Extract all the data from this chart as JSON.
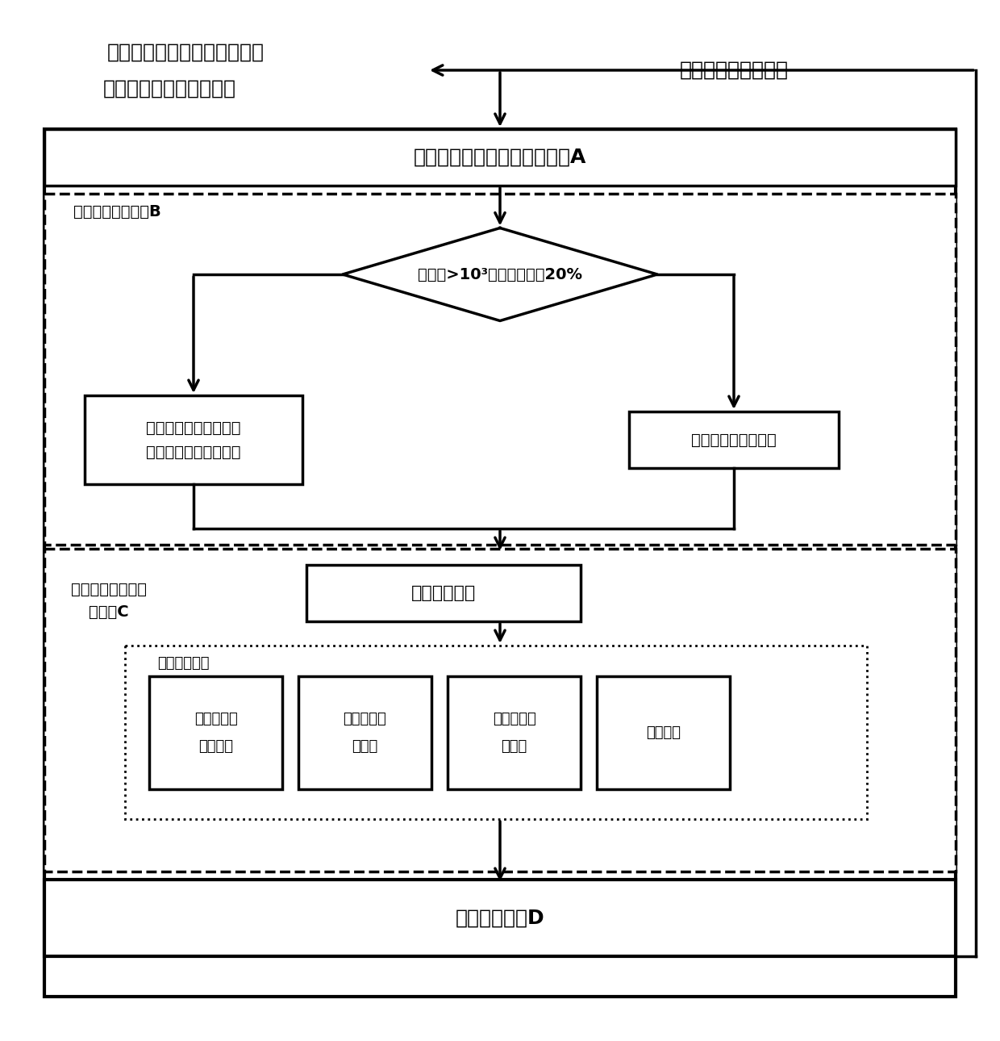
{
  "bg_color": "#ffffff",
  "text_color": "#000000",
  "text_topleft_line1": "环境车车道，车速，加速度，",
  "text_topleft_line2": "相对距离等车辆状态信息",
  "text_topright": "本车车道，速度信息",
  "box_A_text": "感知信号收集及数据存储模块A",
  "box_B_label": "决策参数学习模块B",
  "diamond_text": "数据量>10³或更新量大于20%",
  "box_left_line1": "基于核函数的最小二乘",
  "box_left_line2": "策略迭代强化学习算法",
  "box_right_text": "人类驾驶或随机策略",
  "box_C_label_line1": "轨迹规划及运动控",
  "box_C_label_line2": "制模块C",
  "box_decision_text": "得到决策参数",
  "dotted_label": "模型预测控制",
  "box_mpc1_line1": "非线性运动",
  "box_mpc1_line2": "控制模型",
  "box_mpc2_line1": "终端状态等",
  "box_mpc2_line2": "式约束",
  "box_mpc3_line1": "控制量不等",
  "box_mpc3_line2": "式约束",
  "box_mpc4_text": "目标函数",
  "box_D_text": "执行跟踪模块D"
}
